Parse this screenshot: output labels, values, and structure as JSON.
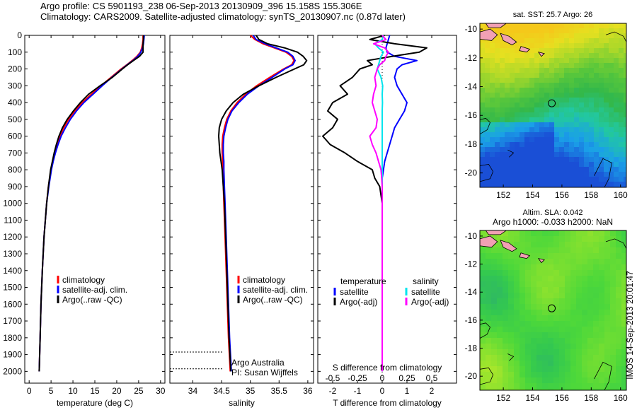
{
  "header": {
    "line1": "Argo profile: CS 5901193_238 06-Sep-2013 20130909_396 15.158S 155.306E",
    "line2": "Climatology: CARS2009. Satellite-adjusted climatology: synTS_20130907.nc (0.87d later)"
  },
  "colors": {
    "climatology": "#ff0000",
    "satellite": "#0000ff",
    "argo": "#000000",
    "salinity_satellite": "#00e5ee",
    "salinity_argo": "#ff00ff"
  },
  "chart_data": [
    {
      "id": "temperature",
      "type": "line",
      "xlabel": "temperature (deg C)",
      "ylabel": "",
      "xlim": [
        -1,
        31
      ],
      "ylim": [
        2070,
        0
      ],
      "xticks": [
        0,
        5,
        10,
        15,
        20,
        25,
        30
      ],
      "yticks": [
        0,
        100,
        200,
        300,
        400,
        500,
        600,
        700,
        800,
        900,
        1000,
        1100,
        1200,
        1300,
        1400,
        1500,
        1600,
        1700,
        1800,
        1900,
        2000
      ],
      "legend": [
        "climatology",
        "satellite-adj. clim.",
        "Argo(..raw -QC)"
      ],
      "depth": [
        0,
        25,
        50,
        75,
        100,
        125,
        150,
        175,
        200,
        250,
        300,
        350,
        400,
        450,
        500,
        550,
        600,
        650,
        700,
        750,
        800,
        900,
        1000,
        1200,
        1400,
        1600,
        1800,
        2000
      ],
      "series": [
        {
          "name": "climatology",
          "color": "#ff0000",
          "values": [
            26.0,
            26.0,
            25.9,
            25.7,
            25.4,
            24.6,
            23.5,
            22.3,
            21.0,
            18.7,
            16.4,
            14.2,
            12.1,
            10.4,
            9.0,
            7.9,
            7.0,
            6.4,
            5.8,
            5.4,
            5.0,
            4.4,
            4.0,
            3.4,
            3.0,
            2.7,
            2.5,
            2.3
          ]
        },
        {
          "name": "satellite-adj. clim.",
          "color": "#0000ff",
          "values": [
            26.3,
            26.2,
            26.1,
            25.9,
            25.5,
            24.8,
            23.7,
            22.4,
            21.2,
            18.9,
            16.7,
            14.6,
            12.5,
            10.8,
            9.4,
            8.3,
            7.3,
            6.6,
            6.0,
            5.5,
            5.1,
            4.5,
            4.0,
            3.4,
            3.0,
            2.7,
            2.5,
            2.3
          ]
        },
        {
          "name": "Argo(..raw -QC)",
          "color": "#000000",
          "values": [
            26.1,
            26.1,
            26.0,
            26.0,
            26.0,
            25.2,
            23.8,
            22.5,
            21.3,
            19.0,
            16.2,
            13.6,
            11.7,
            10.1,
            8.7,
            7.6,
            6.8,
            6.2,
            5.7,
            5.3,
            4.9,
            4.4,
            4.0,
            3.4,
            3.0,
            2.7,
            2.5,
            2.3
          ]
        }
      ]
    },
    {
      "id": "salinity",
      "type": "line",
      "xlabel": "salinity",
      "ylabel": "",
      "xlim": [
        33.6,
        36.1
      ],
      "ylim": [
        2070,
        0
      ],
      "xticks": [
        34,
        34.5,
        35,
        35.5,
        36
      ],
      "legend": [
        "climatology",
        "satellite-adj. clim.",
        "Argo(..raw -QC)"
      ],
      "depth": [
        0,
        25,
        50,
        75,
        100,
        125,
        150,
        175,
        200,
        250,
        300,
        350,
        400,
        450,
        500,
        550,
        600,
        650,
        700,
        750,
        800,
        900,
        1000,
        1200,
        1400,
        1600,
        1800,
        2000
      ],
      "series": [
        {
          "name": "climatology",
          "color": "#ff0000",
          "values": [
            35.0,
            35.08,
            35.22,
            35.42,
            35.62,
            35.72,
            35.76,
            35.72,
            35.58,
            35.34,
            35.11,
            34.92,
            34.77,
            34.66,
            34.59,
            34.55,
            34.52,
            34.51,
            34.51,
            34.52,
            34.52,
            34.53,
            34.54,
            34.56,
            34.58,
            34.6,
            34.62,
            34.65
          ]
        },
        {
          "name": "satellite-adj. clim.",
          "color": "#0000ff",
          "values": [
            35.05,
            35.1,
            35.26,
            35.45,
            35.65,
            35.74,
            35.78,
            35.74,
            35.6,
            35.38,
            35.15,
            34.95,
            34.8,
            34.68,
            34.61,
            34.57,
            34.54,
            34.53,
            34.53,
            34.54,
            34.54,
            34.55,
            34.56,
            34.58,
            34.6,
            34.62,
            34.64,
            34.67
          ]
        },
        {
          "name": "Argo(..raw -QC)",
          "color": "#000000",
          "values": [
            35.1,
            35.15,
            35.3,
            35.6,
            35.82,
            35.92,
            35.98,
            35.93,
            35.77,
            35.45,
            35.15,
            34.88,
            34.7,
            34.58,
            34.5,
            34.46,
            34.45,
            34.46,
            34.47,
            34.49,
            34.51,
            34.53,
            34.55,
            34.57,
            34.59,
            34.61,
            34.63,
            34.66
          ]
        }
      ],
      "annotations": [
        "Argo Australia",
        "PI: Susan Wijffels"
      ]
    },
    {
      "id": "difference",
      "type": "line",
      "xlabel": "T difference from climatology",
      "xlabel_top": "S difference from climatology",
      "xlim": [
        -2.6,
        3.0
      ],
      "ylim": [
        2070,
        0
      ],
      "xticks": [
        -2,
        -1,
        0,
        1,
        2
      ],
      "xticks_top": [
        -0.5,
        -0.25,
        0,
        0.25,
        0.5
      ],
      "xticklabels_top": [
        "-0.5",
        "-0.25",
        "0",
        "0.25",
        "0.5"
      ],
      "legend_titles": [
        "temperature",
        "salinity"
      ],
      "legend": [
        "satellite",
        "Argo(-adj)",
        "satellite",
        "Argo(-adj)"
      ],
      "depth": [
        0,
        25,
        50,
        75,
        100,
        125,
        150,
        175,
        200,
        250,
        300,
        350,
        400,
        450,
        500,
        550,
        600,
        650,
        700,
        750,
        800,
        850,
        900,
        1000,
        1200,
        1400,
        1600,
        1800,
        2000
      ],
      "series": [
        {
          "name": "satellite",
          "quantity": "temperature",
          "color": "#0000ff",
          "values": [
            0.3,
            0.25,
            0.2,
            0.15,
            0.2,
            0.5,
            1.4,
            0.8,
            0.6,
            0.5,
            0.6,
            0.8,
            1.0,
            0.9,
            0.7,
            0.5,
            0.4,
            0.3,
            0.2,
            0.1,
            0.05,
            0.0,
            0.0,
            0.0,
            0.0,
            0.0,
            0.0,
            0.0,
            0.0
          ]
        },
        {
          "name": "Argo(-adj)",
          "quantity": "temperature",
          "color": "#000000",
          "values": [
            0.1,
            -0.5,
            0.5,
            1.8,
            1.5,
            0.4,
            -0.6,
            -0.4,
            -0.9,
            -1.2,
            -1.7,
            -1.4,
            -2.0,
            -2.2,
            -1.8,
            -2.0,
            -2.4,
            -2.1,
            -1.5,
            -1.0,
            -0.4,
            -0.3,
            -0.1,
            0.0,
            0.0,
            0.0,
            0.0,
            0.0,
            0.0
          ]
        },
        {
          "name": "satellite",
          "quantity": "salinity",
          "color": "#00e5ee",
          "values": [
            0.05,
            0.0,
            -0.3,
            -0.15,
            0.05,
            -0.05,
            -0.1,
            -0.15,
            -0.2,
            -0.05,
            0.02,
            0.0,
            0.01,
            0.0,
            0.0,
            0.0,
            0.0,
            0.0,
            0.0,
            0.0,
            0.0,
            0.0,
            0.0,
            0.0,
            0.0,
            0.0,
            0.0,
            0.0,
            0.0
          ]
        },
        {
          "name": "Argo(-adj)",
          "quantity": "salinity",
          "color": "#ff00ff",
          "values": [
            0.0,
            0.15,
            -0.35,
            0.1,
            0.25,
            0.15,
            0.1,
            -0.1,
            -0.2,
            -0.3,
            -0.25,
            -0.35,
            -0.4,
            -0.3,
            -0.2,
            -0.25,
            -0.5,
            -0.4,
            -0.25,
            -0.15,
            -0.05,
            -0.02,
            0.0,
            0.0,
            0.0,
            0.0,
            0.0,
            0.0,
            0.0
          ]
        }
      ]
    },
    {
      "id": "sst_map",
      "type": "heatmap",
      "title": "sat. SST: 25.7  Argo: 26",
      "xlim": [
        150.4,
        160.4
      ],
      "ylim": [
        -21.0,
        -9.6
      ],
      "xticks": [
        152,
        154,
        156,
        158,
        160
      ],
      "yticks": [
        -10,
        -12,
        -14,
        -16,
        -18,
        -20
      ],
      "profile_location": {
        "lon": 155.306,
        "lat": -15.158
      },
      "colormap": [
        "#1a4fd6",
        "#1aa0e8",
        "#22c8a0",
        "#33b84a",
        "#5cc83a",
        "#a8d82a",
        "#e6e020",
        "#f5c81a"
      ]
    },
    {
      "id": "sla_map",
      "type": "heatmap",
      "title": "Altim. SLA: 0.042",
      "subtitle": "Argo h1000: -0.033 h2000: NaN",
      "xlim": [
        150.4,
        160.4
      ],
      "ylim": [
        -21.0,
        -9.6
      ],
      "xticks": [
        152,
        154,
        156,
        158,
        160
      ],
      "yticks": [
        -10,
        -12,
        -14,
        -16,
        -18,
        -20
      ],
      "profile_location": {
        "lon": 155.306,
        "lat": -15.158
      },
      "colormap": [
        "#2aa878",
        "#33c850",
        "#4dd83a",
        "#7ee030",
        "#b4e82a"
      ]
    }
  ],
  "side_label": "IMOS 14-Sep-2013 20:01:47"
}
